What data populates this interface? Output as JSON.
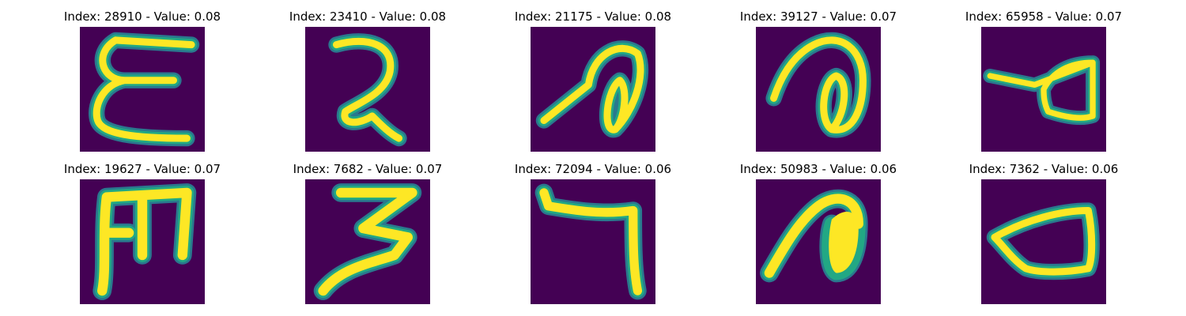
{
  "colors": {
    "background": "#440154",
    "stroke_core": "#fde725",
    "stroke_edge": "#22a884",
    "stroke_halo": "#2a788e"
  },
  "panels": [
    {
      "title": "Index: 28910 - Value: 0.08",
      "glyph": "character-like-epsilon"
    },
    {
      "title": "Index: 23410 - Value: 0.08",
      "glyph": "character-like-two-with-tail"
    },
    {
      "title": "Index: 21175 - Value: 0.08",
      "glyph": "character-loop-slanted"
    },
    {
      "title": "Index: 39127 - Value: 0.07",
      "glyph": "character-loop-slanted"
    },
    {
      "title": "Index: 65958 - Value: 0.07",
      "glyph": "character-triangle-loop"
    },
    {
      "title": "Index: 19627 - Value: 0.07",
      "glyph": "character-like-m-comb"
    },
    {
      "title": "Index: 7682 - Value: 0.07",
      "glyph": "character-like-three"
    },
    {
      "title": "Index: 72094 - Value: 0.06",
      "glyph": "character-like-seven"
    },
    {
      "title": "Index: 50983 - Value: 0.06",
      "glyph": "character-filled-loop"
    },
    {
      "title": "Index: 7362 - Value: 0.06",
      "glyph": "character-triangle-loop"
    }
  ]
}
